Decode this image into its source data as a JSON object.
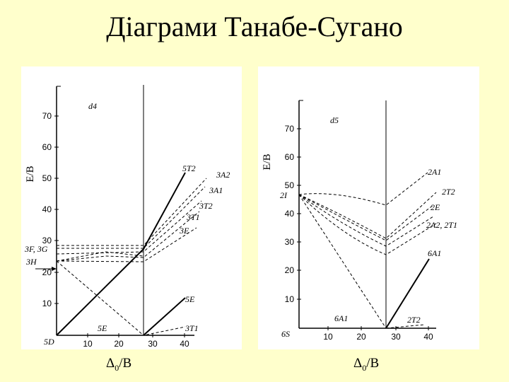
{
  "title": "Діаграми Танабе-Сугано",
  "diagrams": [
    {
      "id": "d4",
      "config_label": "d4",
      "y_axis_label": "E/B",
      "x_axis_label": "Δ",
      "x_axis_sub": "0",
      "x_axis_suffix": "/B",
      "y_ticks": [
        "10",
        "20",
        "30",
        "40",
        "50",
        "60",
        "70"
      ],
      "x_ticks": [
        "10",
        "20",
        "30",
        "40"
      ],
      "left_terms": [
        "5D",
        "3H",
        "3F, 3G"
      ],
      "right_terms": [
        "5T2",
        "3A2",
        "3A1",
        "3T2",
        "3T1",
        "3E",
        "5E",
        "3T1"
      ],
      "bottom_terms": [
        "5E"
      ]
    },
    {
      "id": "d5",
      "config_label": "d5",
      "y_axis_label": "E/B",
      "x_axis_label": "Δ",
      "x_axis_sub": "0",
      "x_axis_suffix": "/B",
      "y_ticks": [
        "10",
        "20",
        "30",
        "40",
        "50",
        "60",
        "70"
      ],
      "x_ticks": [
        "10",
        "20",
        "30",
        "40"
      ],
      "left_terms": [
        "6S",
        "2I"
      ],
      "right_terms": [
        "2A1",
        "2T2",
        "2E",
        "2A2, 2T1",
        "6A1",
        "2T2"
      ],
      "bottom_terms": [
        "6A1"
      ]
    }
  ]
}
